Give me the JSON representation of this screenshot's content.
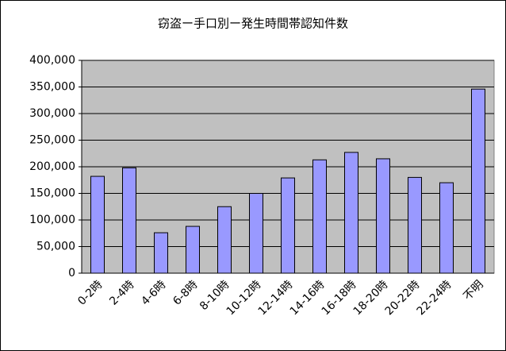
{
  "chart_data": {
    "type": "bar",
    "title": "窃盗ー手口別ー発生時間帯認知件数",
    "categories": [
      "0-2時",
      "2-4時",
      "4-6時",
      "6-8時",
      "8-10時",
      "10-12時",
      "12-14時",
      "14-16時",
      "16-18時",
      "18-20時",
      "20-22時",
      "22-24時",
      "不明"
    ],
    "values": [
      182000,
      198000,
      76000,
      88000,
      125000,
      150000,
      179000,
      213000,
      227000,
      215000,
      180000,
      170000,
      346000
    ],
    "color": "#9999ff",
    "ylim": [
      0,
      400000
    ],
    "yticks": [
      0,
      {
        "value": 50000,
        "label": "50,000"
      },
      {
        "value": 100000,
        "label": "100,000"
      },
      {
        "value": 150000,
        "label": "150,000"
      },
      {
        "value": 200000,
        "label": "200,000"
      },
      {
        "value": 250000,
        "label": "250,000"
      },
      {
        "value": 300000,
        "label": "300,000"
      },
      {
        "value": 350000,
        "label": "350,000"
      },
      {
        "value": 400000,
        "label": "400,000"
      }
    ],
    "grid": true
  }
}
